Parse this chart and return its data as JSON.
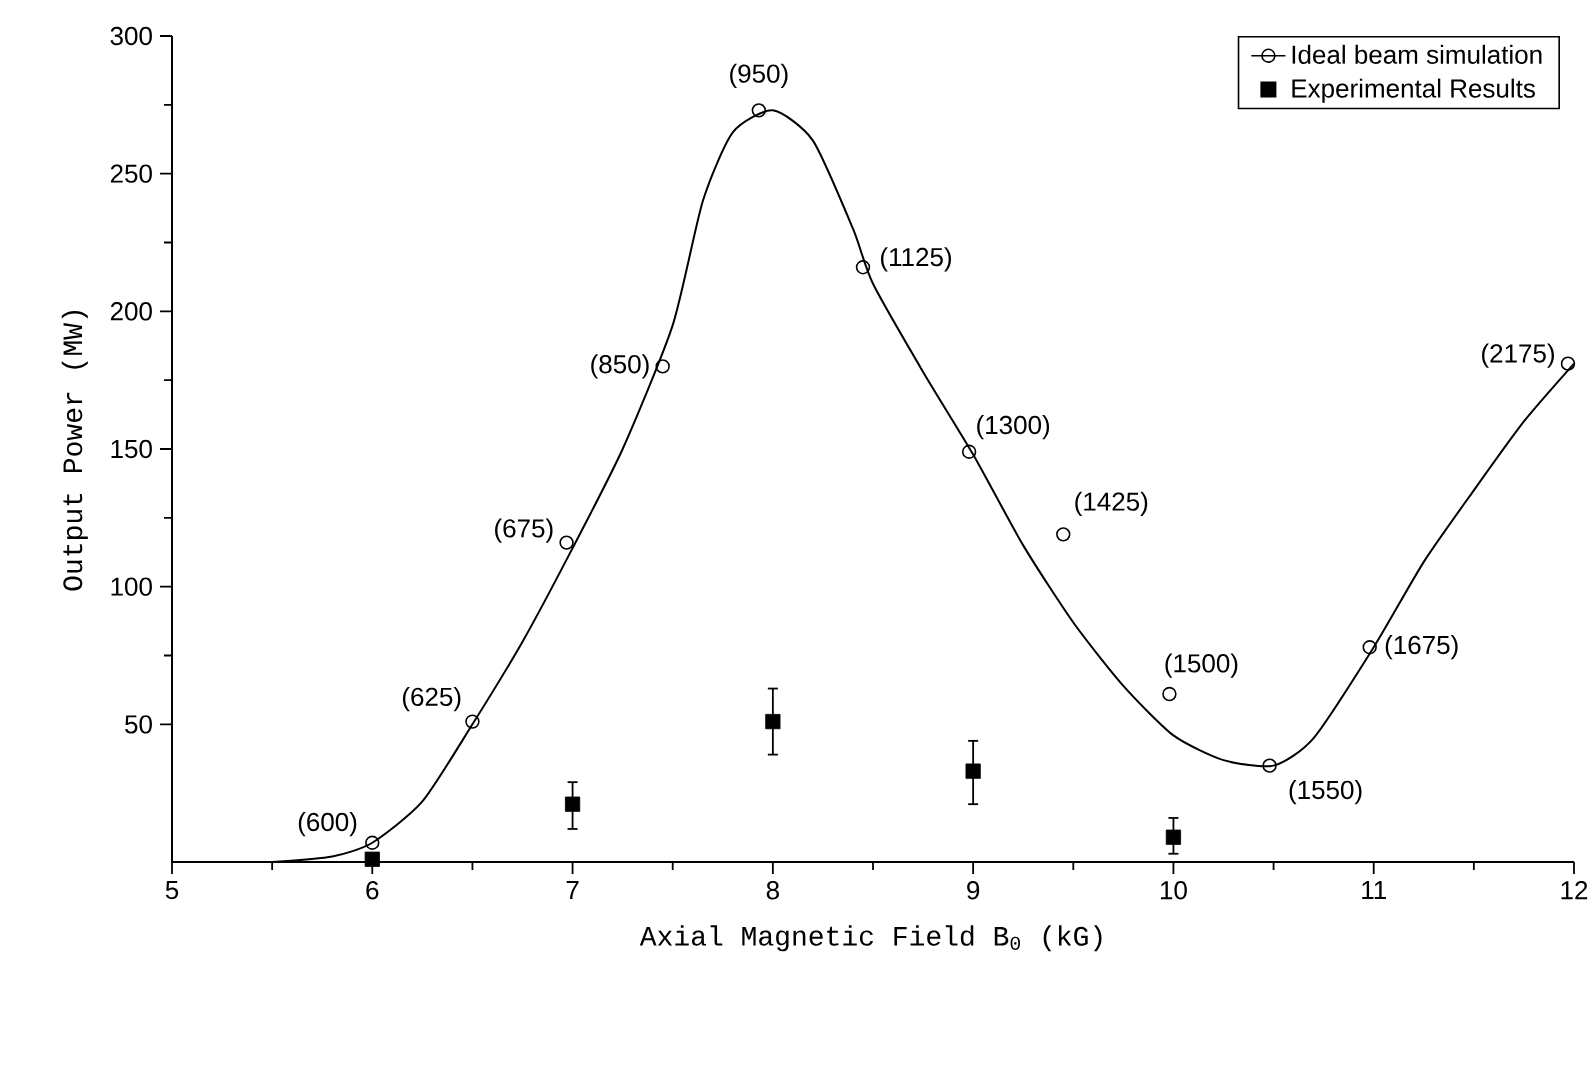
{
  "chart_data": {
    "type": "scatter",
    "xlabel": "Axial Magnetic Field B$_{0}$ (kG)",
    "ylabel": "Output Power (MW)",
    "xlim": [
      5,
      12
    ],
    "ylim": [
      0,
      300
    ],
    "xticks": [
      5,
      6,
      7,
      8,
      9,
      10,
      11,
      12
    ],
    "yticks": [
      50,
      100,
      150,
      200,
      250,
      300
    ],
    "legend": "top right",
    "grid": false,
    "series": [
      {
        "name": "Ideal beam simulation",
        "marker": "circle",
        "color": "#000000",
        "x": [
          6,
          6.5,
          6.97,
          7.45,
          7.93,
          8.45,
          8.98,
          9.45,
          9.98,
          10.48,
          10.98,
          11.97
        ],
        "values": [
          7,
          51,
          116,
          180,
          273,
          216,
          149,
          119,
          61,
          35,
          78,
          181
        ]
      },
      {
        "name": "Experimental Results",
        "marker": "square",
        "color": "#000000",
        "x": [
          6,
          7,
          8,
          9,
          10
        ],
        "values": [
          1,
          21,
          51,
          33,
          9
        ],
        "errors": [
          null,
          [
            12,
            29
          ],
          [
            39,
            63
          ],
          [
            21,
            44
          ],
          [
            3,
            16
          ]
        ]
      },
      {
        "type": "line",
        "marker": "none",
        "line_style": "solid",
        "color": "#000000",
        "x": [
          5.5,
          5.8,
          6,
          6.25,
          6.5,
          6.75,
          7,
          7.25,
          7.5,
          7.65,
          7.8,
          8,
          8.2,
          8.4,
          8.5,
          8.75,
          9,
          9.25,
          9.5,
          9.75,
          10,
          10.25,
          10.5,
          10.7,
          11,
          11.25,
          11.5,
          11.75,
          12
        ],
        "values": [
          0,
          2,
          7,
          22,
          50,
          80,
          114,
          150,
          195,
          240,
          265,
          273,
          262,
          230,
          210,
          178,
          148,
          115,
          87,
          64,
          46,
          37,
          35,
          45,
          78,
          109,
          135,
          160,
          181
        ]
      }
    ],
    "annotations": [
      {
        "text": "(600)",
        "x": 6,
        "y": 7
      },
      {
        "text": "(625)",
        "x": 6.5,
        "y": 51
      },
      {
        "text": "(675)",
        "x": 6.97,
        "y": 116
      },
      {
        "text": "(850)",
        "x": 7.45,
        "y": 180
      },
      {
        "text": "(950)",
        "x": 7.93,
        "y": 273
      },
      {
        "text": "(1125)",
        "x": 8.45,
        "y": 216
      },
      {
        "text": "(1300)",
        "x": 8.98,
        "y": 149
      },
      {
        "text": "(1425)",
        "x": 9.45,
        "y": 119
      },
      {
        "text": "(1500)",
        "x": 9.98,
        "y": 61
      },
      {
        "text": "(1550)",
        "x": 10.48,
        "y": 35
      },
      {
        "text": "(1675)",
        "x": 10.98,
        "y": 78
      },
      {
        "text": "(2175)",
        "x": 11.97,
        "y": 181
      }
    ]
  }
}
